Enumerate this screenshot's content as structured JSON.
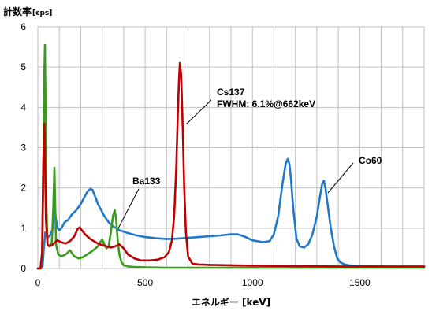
{
  "chart_data": {
    "type": "line",
    "title": "",
    "ylabel": "計数率",
    "ylabel_unit": "[cps]",
    "xlabel": "エネルギー [keV]",
    "xlim": [
      0,
      1800
    ],
    "ylim": [
      0,
      6
    ],
    "xticks": [
      "0",
      "500",
      "1000",
      "1500"
    ],
    "yticks": [
      "0",
      "1",
      "2",
      "3",
      "4",
      "5",
      "6"
    ],
    "grid": true,
    "colors": {
      "Co60": "#1f78c8",
      "Ba133": "#3a9a1c",
      "Cs137": "#c00000"
    },
    "annotations": [
      {
        "text": "Cs137",
        "series": "Cs137",
        "x": 662,
        "y": 3.55
      },
      {
        "text": "FWHM: 6.1%@662keV",
        "series": "Cs137",
        "x": 662,
        "y": 3.55
      },
      {
        "text": "Co60",
        "series": "Co60",
        "x": 1350,
        "y": 1.95
      },
      {
        "text": "Ba133",
        "series": "Ba133",
        "x": 370,
        "y": 1.05
      }
    ],
    "series": [
      {
        "name": "Co60",
        "x": [
          0,
          15,
          22,
          28,
          35,
          45,
          60,
          70,
          78,
          85,
          92,
          100,
          110,
          125,
          140,
          160,
          180,
          200,
          215,
          230,
          245,
          255,
          262,
          270,
          280,
          295,
          310,
          330,
          350,
          380,
          420,
          460,
          500,
          550,
          600,
          650,
          700,
          750,
          800,
          850,
          900,
          930,
          960,
          1000,
          1050,
          1080,
          1100,
          1120,
          1140,
          1155,
          1165,
          1172,
          1180,
          1190,
          1205,
          1220,
          1240,
          1260,
          1280,
          1300,
          1315,
          1325,
          1333,
          1340,
          1350,
          1365,
          1380,
          1395,
          1410,
          1430,
          1450,
          1500,
          1550,
          1600,
          1650,
          1700,
          1750,
          1800
        ],
        "y": [
          0,
          0,
          0.05,
          0.5,
          0.9,
          0.75,
          0.85,
          1.0,
          1.55,
          1.2,
          1.0,
          0.95,
          1.0,
          1.15,
          1.2,
          1.35,
          1.45,
          1.6,
          1.75,
          1.9,
          1.98,
          1.95,
          1.85,
          1.75,
          1.6,
          1.45,
          1.3,
          1.15,
          1.05,
          0.95,
          0.88,
          0.82,
          0.78,
          0.75,
          0.73,
          0.74,
          0.76,
          0.78,
          0.8,
          0.82,
          0.85,
          0.85,
          0.8,
          0.7,
          0.65,
          0.68,
          0.85,
          1.3,
          2.1,
          2.6,
          2.72,
          2.6,
          2.2,
          1.5,
          0.75,
          0.55,
          0.52,
          0.6,
          0.85,
          1.3,
          1.8,
          2.1,
          2.18,
          2.0,
          1.6,
          1.0,
          0.55,
          0.25,
          0.15,
          0.1,
          0.08,
          0.06,
          0.05,
          0.05,
          0.04,
          0.04,
          0.04,
          0.04
        ]
      },
      {
        "name": "Ba133",
        "x": [
          0,
          12,
          20,
          25,
          30,
          33,
          36,
          40,
          45,
          55,
          65,
          72,
          77,
          80,
          85,
          95,
          110,
          130,
          150,
          170,
          190,
          210,
          230,
          250,
          265,
          280,
          290,
          300,
          310,
          320,
          330,
          340,
          350,
          358,
          365,
          372,
          380,
          390,
          400,
          420,
          450,
          500,
          600,
          700,
          800,
          1000,
          1200,
          1400,
          1600,
          1800
        ],
        "y": [
          0,
          0,
          0.3,
          2.0,
          4.8,
          5.55,
          4.0,
          1.6,
          0.6,
          0.55,
          0.65,
          1.5,
          2.5,
          1.8,
          0.6,
          0.35,
          0.3,
          0.35,
          0.45,
          0.3,
          0.25,
          0.28,
          0.35,
          0.42,
          0.48,
          0.55,
          0.65,
          0.72,
          0.6,
          0.5,
          0.55,
          0.9,
          1.3,
          1.45,
          1.2,
          0.7,
          0.35,
          0.15,
          0.08,
          0.05,
          0.04,
          0.03,
          0.02,
          0.02,
          0.02,
          0.02,
          0.02,
          0.02,
          0.02,
          0.02
        ]
      },
      {
        "name": "Cs137",
        "x": [
          0,
          12,
          20,
          25,
          30,
          34,
          38,
          45,
          55,
          70,
          90,
          110,
          130,
          150,
          170,
          185,
          195,
          205,
          220,
          240,
          260,
          280,
          300,
          320,
          340,
          360,
          380,
          400,
          420,
          450,
          480,
          520,
          560,
          590,
          610,
          625,
          635,
          645,
          652,
          658,
          662,
          668,
          675,
          682,
          690,
          700,
          720,
          750,
          800,
          900,
          1000,
          1200,
          1400,
          1600,
          1800
        ],
        "y": [
          0,
          0,
          0.4,
          2.5,
          3.6,
          2.5,
          1.2,
          0.6,
          0.55,
          0.6,
          0.7,
          0.65,
          0.62,
          0.68,
          0.8,
          0.98,
          1.02,
          0.95,
          0.85,
          0.75,
          0.68,
          0.62,
          0.58,
          0.55,
          0.52,
          0.55,
          0.6,
          0.5,
          0.35,
          0.25,
          0.2,
          0.2,
          0.22,
          0.28,
          0.4,
          0.7,
          1.3,
          2.5,
          3.8,
          4.7,
          5.1,
          4.8,
          3.5,
          2.0,
          0.9,
          0.3,
          0.12,
          0.1,
          0.09,
          0.08,
          0.07,
          0.06,
          0.05,
          0.05,
          0.05
        ]
      }
    ]
  }
}
